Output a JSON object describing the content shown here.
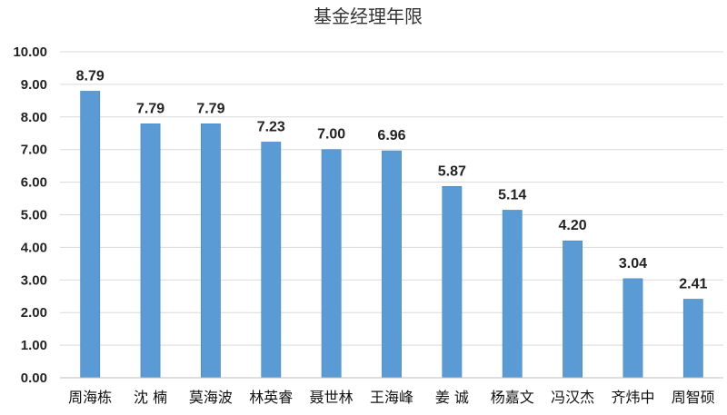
{
  "chart_data": {
    "type": "bar",
    "title": "基金经理年限",
    "xlabel": "",
    "ylabel": "",
    "categories": [
      "周海栋",
      "沈 楠",
      "莫海波",
      "林英睿",
      "聂世林",
      "王海峰",
      "姜 诚",
      "杨嘉文",
      "冯汉杰",
      "齐炜中",
      "周智硕"
    ],
    "values": [
      8.79,
      7.79,
      7.79,
      7.23,
      7.0,
      6.96,
      5.87,
      5.14,
      4.2,
      3.04,
      2.41
    ],
    "value_labels": [
      "8.79",
      "7.79",
      "7.79",
      "7.23",
      "7.00",
      "6.96",
      "5.87",
      "5.14",
      "4.20",
      "3.04",
      "2.41"
    ],
    "ylim": [
      0,
      10
    ],
    "yticks": [
      "0.00",
      "1.00",
      "2.00",
      "3.00",
      "4.00",
      "5.00",
      "6.00",
      "7.00",
      "8.00",
      "9.00",
      "10.00"
    ],
    "grid": true,
    "legend": "none",
    "bar_color": "#5b9bd5"
  }
}
